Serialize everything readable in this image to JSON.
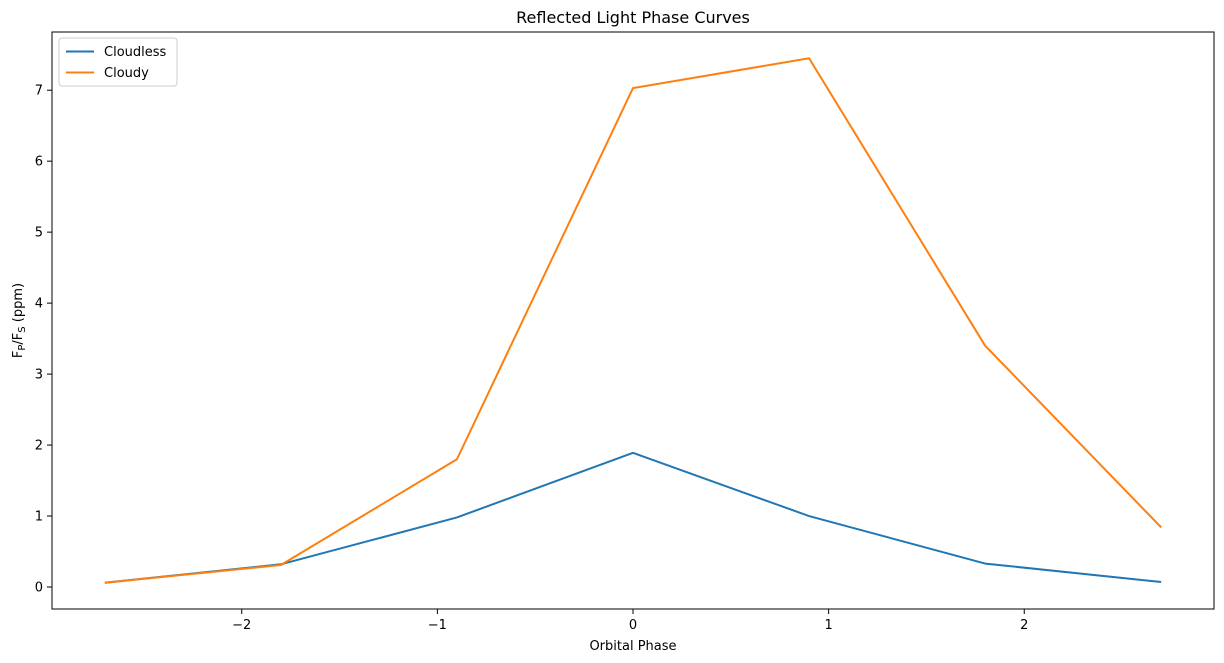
{
  "chart_data": {
    "type": "line",
    "title": "Reflected Light Phase Curves",
    "xlabel": "Orbital Phase",
    "ylabel": {
      "main": "F",
      "sub1": "P",
      "sep": "/F",
      "sub2": "S",
      "unit": " (ppm)"
    },
    "xlim": [
      -2.97,
      2.97
    ],
    "ylim": [
      -0.31,
      7.82
    ],
    "xticks": [
      -2,
      -1,
      0,
      1,
      2
    ],
    "xtick_labels": [
      "−2",
      "−1",
      "0",
      "1",
      "2"
    ],
    "yticks": [
      0,
      1,
      2,
      3,
      4,
      5,
      6,
      7
    ],
    "ytick_labels": [
      "0",
      "1",
      "2",
      "3",
      "4",
      "5",
      "6",
      "7"
    ],
    "grid": false,
    "legend_position": "top-left",
    "x": [
      -2.7,
      -1.8,
      -0.9,
      0.0,
      0.9,
      1.8,
      2.7
    ],
    "series": [
      {
        "name": "Cloudless",
        "color": "#1f77b4",
        "values": [
          0.06,
          0.32,
          0.98,
          1.89,
          1.0,
          0.33,
          0.07
        ]
      },
      {
        "name": "Cloudy",
        "color": "#ff7f0e",
        "values": [
          0.06,
          0.31,
          1.8,
          7.03,
          7.45,
          3.4,
          0.84
        ]
      }
    ]
  }
}
